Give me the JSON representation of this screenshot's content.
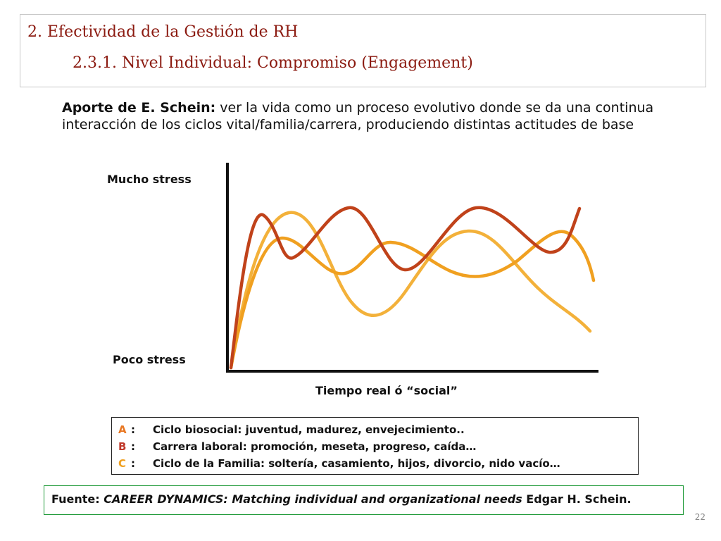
{
  "title": {
    "line1": "2. Efectividad de la Gestión de RH",
    "line2": "2.3.1. Nivel Individual: Compromiso (Engagement)"
  },
  "intro": {
    "bold": "Aporte de E. Schein:",
    "text": " ver la vida como un proceso evolutivo donde se da una continua interacción de los ciclos vital/familia/carrera, produciendo distintas actitudes de base"
  },
  "chart": {
    "y_high_label": "Mucho stress",
    "y_low_label": "Poco stress",
    "x_label": "Tiempo real ó “social”"
  },
  "legend": [
    {
      "letter": "A",
      "sep": ":",
      "text": "Ciclo biosocial: juventud, madurez, envejecimiento..",
      "color": "#e87722"
    },
    {
      "letter": "B",
      "sep": ":",
      "text": "Carrera laboral: promoción, meseta, progreso, caída…",
      "color": "#c0392b"
    },
    {
      "letter": "C",
      "sep": ":",
      "text": "Ciclo de la Familia: soltería, casamiento, hijos, divorcio, nido vacío…",
      "color": "#f0a020"
    }
  ],
  "source": {
    "label": "Fuente: ",
    "title": "CAREER DYNAMICS: Matching individual and organizational needs",
    "author": " Edgar H. Schein."
  },
  "page_number": "22",
  "colors": {
    "title": "#8b1a10",
    "curve_dark": "#c0421a",
    "curve_orange": "#f0a020",
    "curve_light": "#f3b13a",
    "source_border": "#1f9a38"
  }
}
